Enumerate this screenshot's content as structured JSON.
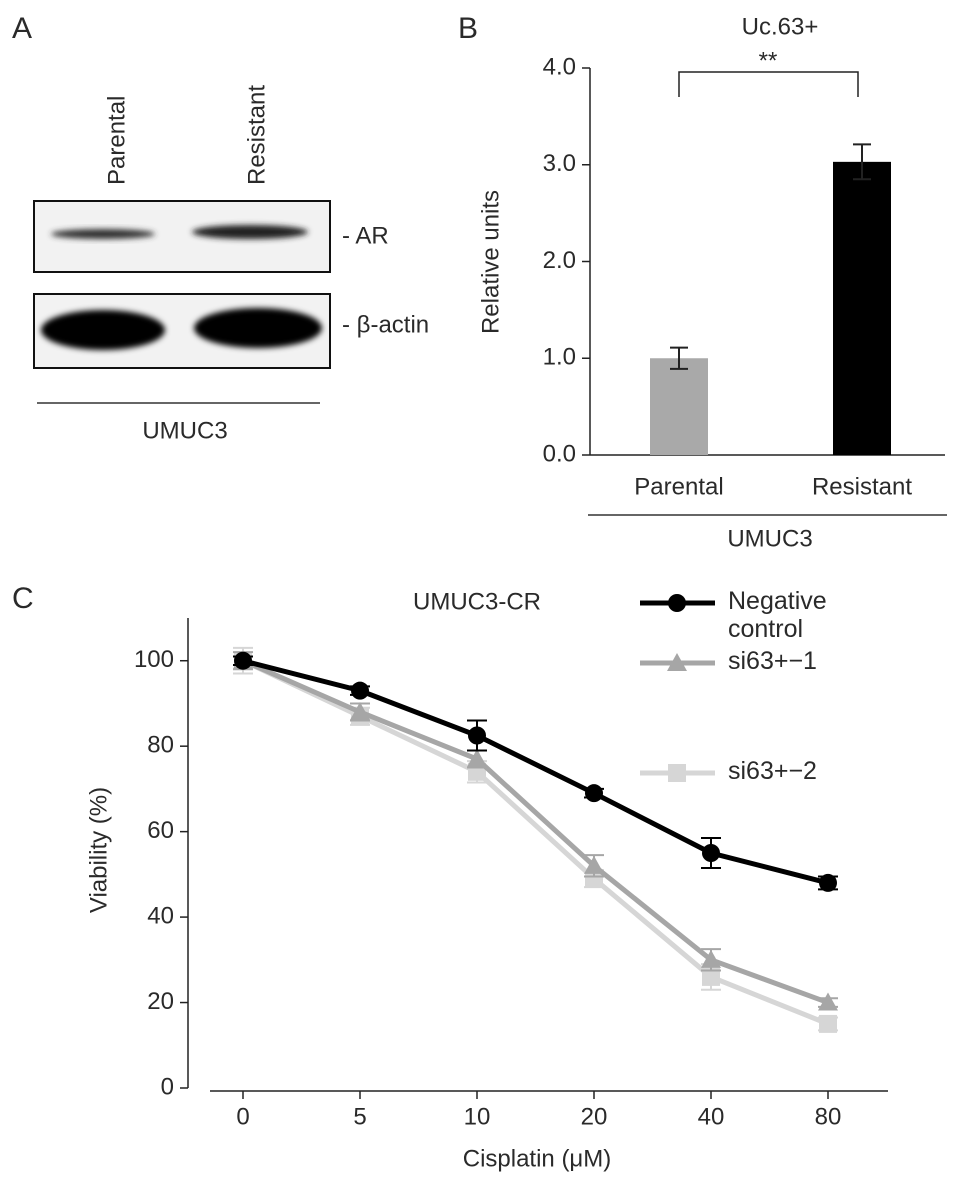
{
  "blot": {
    "panel": "A",
    "lanes": [
      "Parental",
      "Resistant"
    ],
    "bands": [
      "- AR",
      "- β-actin"
    ],
    "group": "UMUC3"
  },
  "chart_data": [
    {
      "type": "bar",
      "panel": "B",
      "title": "Uc.63+",
      "ylabel": "Relative units",
      "categories": [
        "Parental",
        "Resistant"
      ],
      "values": [
        1.0,
        3.03
      ],
      "errors": [
        0.11,
        0.18
      ],
      "colors": [
        "#a9a9a9",
        "#000000"
      ],
      "group_label": "UMUC3",
      "annotation": "**",
      "ylim": [
        0,
        4
      ],
      "yticks": [
        {
          "value": 0,
          "label": "0.0"
        },
        {
          "value": 1,
          "label": "1.0"
        },
        {
          "value": 2,
          "label": "2.0"
        },
        {
          "value": 3,
          "label": "3.0"
        },
        {
          "value": 4,
          "label": "4.0"
        }
      ]
    },
    {
      "type": "line",
      "panel": "C",
      "title": "UMUC3-CR",
      "xlabel": "Cisplatin (μM)",
      "ylabel": "Viability (%)",
      "categories": [
        "0",
        "5",
        "10",
        "20",
        "40",
        "80"
      ],
      "series": [
        {
          "name": "Negative control",
          "color": "#000000",
          "marker": "circle",
          "values": [
            100,
            93,
            82.5,
            69,
            55,
            48
          ],
          "errors": [
            1,
            1,
            3.5,
            1,
            3.5,
            1.5
          ]
        },
        {
          "name": "si63+−1",
          "color": "#a6a6a6",
          "marker": "triangle",
          "values": [
            100,
            88,
            77,
            52,
            30,
            20
          ],
          "errors": [
            2,
            2,
            2,
            2.5,
            2.5,
            1
          ]
        },
        {
          "name": "si63+−2",
          "color": "#d6d6d6",
          "marker": "square",
          "values": [
            100,
            87,
            74,
            49,
            26,
            15
          ],
          "errors": [
            3,
            2,
            2.5,
            2,
            3,
            1.5
          ]
        }
      ],
      "ylim": [
        0,
        110
      ],
      "yticks": [
        0,
        20,
        40,
        60,
        80,
        100
      ],
      "legend": "upper right"
    }
  ]
}
